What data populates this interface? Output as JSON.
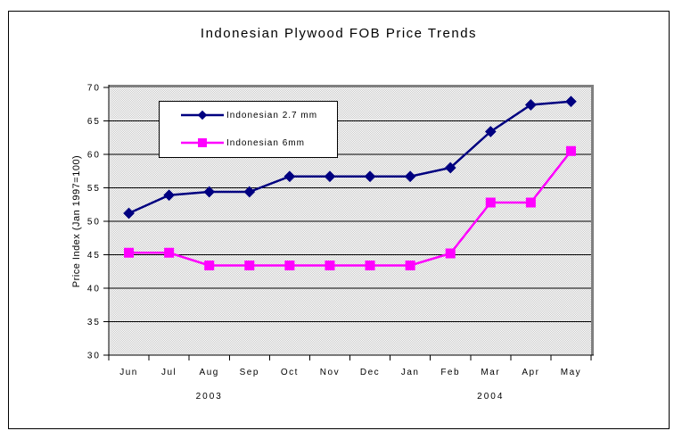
{
  "chart_data": {
    "type": "line",
    "title": "Indonesian Plywood FOB Price Trends",
    "ylabel": "Price Index (Jan 1997=100)",
    "xlabel": "",
    "categories": [
      "Jun",
      "Jul",
      "Aug",
      "Sep",
      "Oct",
      "Nov",
      "Dec",
      "Jan",
      "Feb",
      "Mar",
      "Apr",
      "May"
    ],
    "year_annotations": [
      {
        "label": "2003",
        "category_index": 2
      },
      {
        "label": "2004",
        "category_index": 9
      }
    ],
    "ylim": [
      30,
      70
    ],
    "ytick_step": 5,
    "grid": true,
    "legend_position": "inside-top-left",
    "plot_border_color": "#808080",
    "gridline_color": "#000000",
    "series": [
      {
        "name": "Indonesian 2.7 mm",
        "color": "#000080",
        "marker": "diamond",
        "values": [
          51.2,
          53.9,
          54.4,
          54.4,
          56.7,
          56.7,
          56.7,
          56.7,
          58.0,
          63.4,
          67.4,
          67.9
        ]
      },
      {
        "name": "Indonesian 6mm",
        "color": "#FF00FF",
        "marker": "square",
        "values": [
          45.3,
          45.3,
          43.4,
          43.4,
          43.4,
          43.4,
          43.4,
          43.4,
          45.2,
          52.8,
          52.8,
          60.5
        ]
      }
    ]
  }
}
